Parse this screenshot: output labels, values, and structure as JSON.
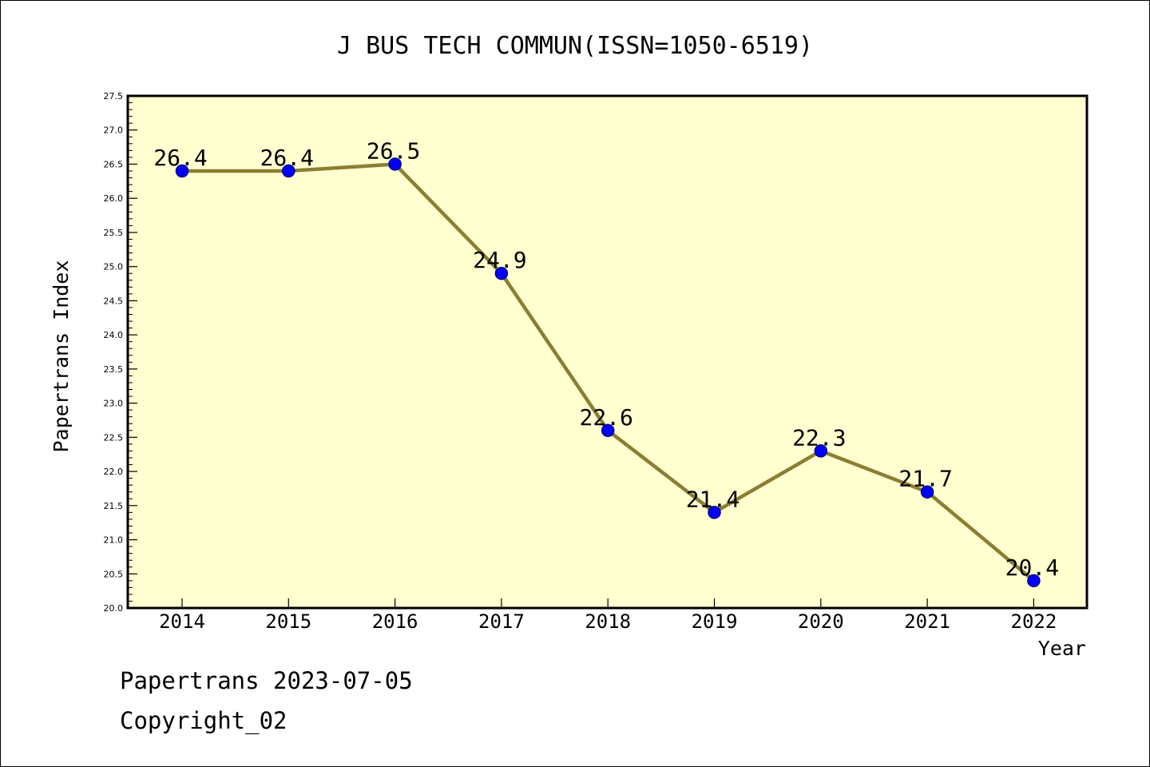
{
  "chart_data": {
    "type": "line",
    "title": "J BUS TECH COMMUN(ISSN=1050-6519)",
    "xlabel": "Year",
    "ylabel": "Papertrans Index",
    "categories": [
      "2014",
      "2015",
      "2016",
      "2017",
      "2018",
      "2019",
      "2020",
      "2021",
      "2022"
    ],
    "series": [
      {
        "values": [
          26.4,
          26.4,
          26.5,
          24.9,
          22.6,
          21.4,
          22.3,
          21.7,
          20.4
        ]
      }
    ],
    "data_labels": [
      "26.4",
      "26.4",
      "26.5",
      "24.9",
      "22.6",
      "21.4",
      "22.3",
      "21.7",
      "20.4"
    ],
    "ylim": [
      20.0,
      27.5
    ],
    "yticks": [
      "20.0",
      "20.5",
      "21.0",
      "21.5",
      "22.0",
      "22.5",
      "23.0",
      "23.5",
      "24.0",
      "24.5",
      "25.0",
      "25.5",
      "26.0",
      "26.5",
      "27.0",
      "27.5"
    ],
    "grid": false,
    "colors": {
      "plot_background": "#ffffd0",
      "line": "#8b7d32",
      "marker": "#0000ff",
      "marker_edge": "#00008b",
      "axis": "#000000"
    }
  },
  "footer": {
    "stamp": "Papertrans 2023-07-05",
    "copyright": "Copyright_02"
  }
}
